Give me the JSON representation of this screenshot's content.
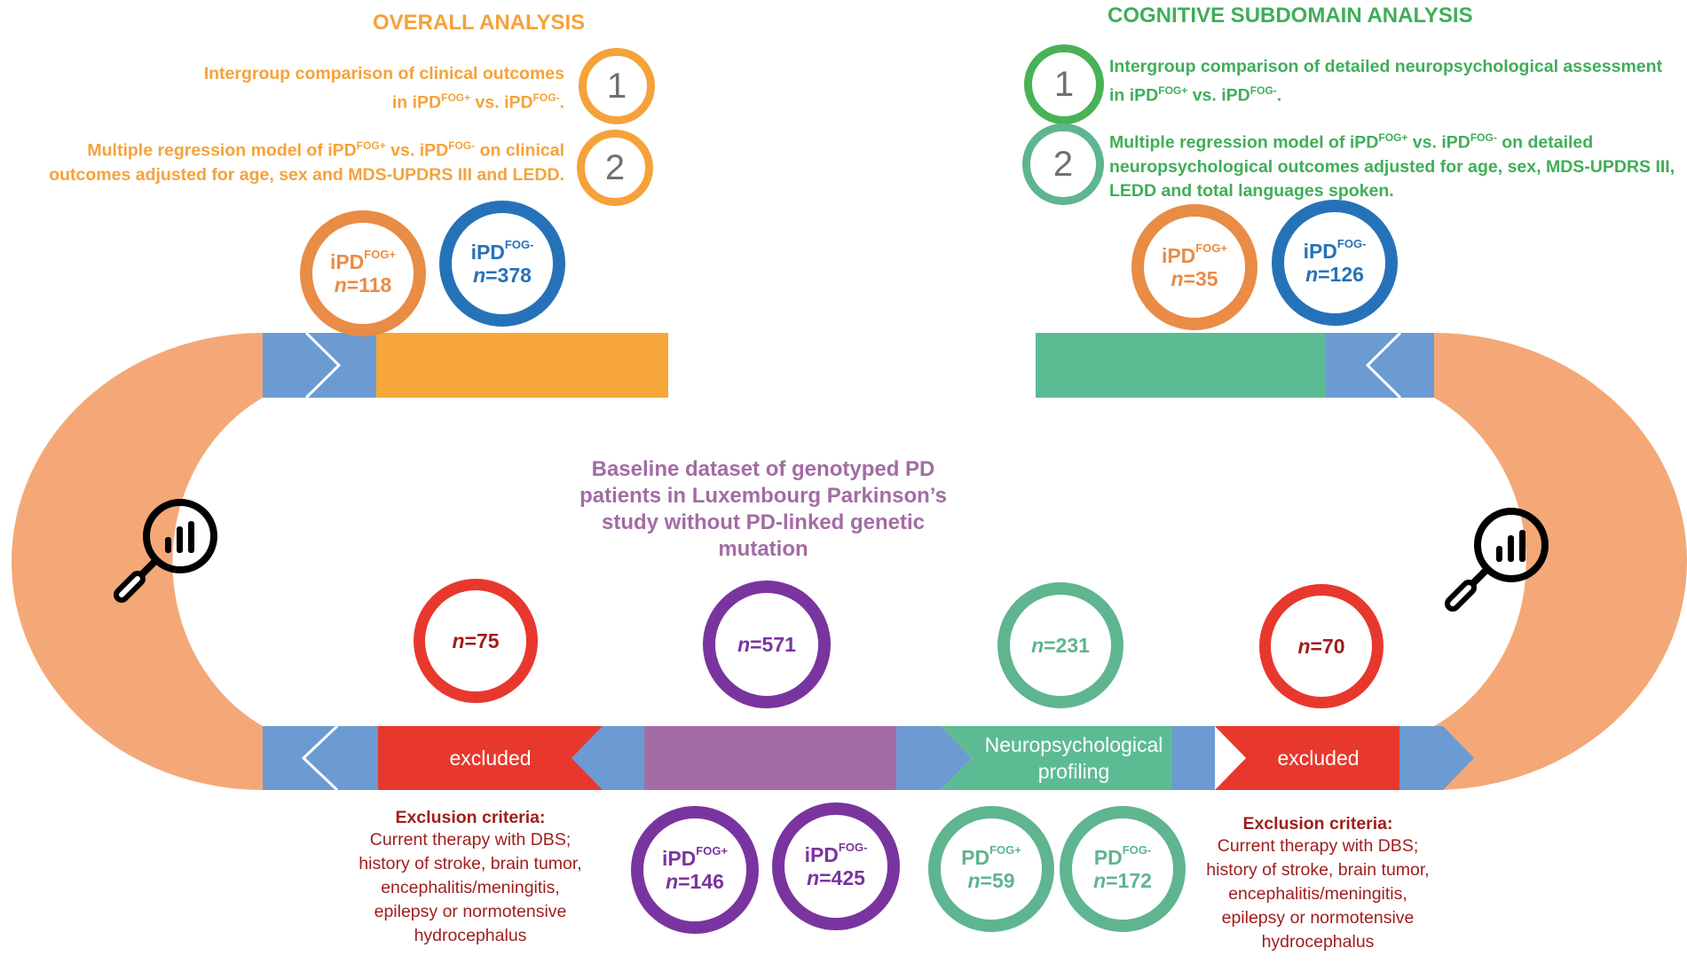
{
  "colors": {
    "orange_text": "#f5a23a",
    "orange_ring": "#e98c45",
    "green_text": "#3fae58",
    "green_ring": "#5fb58f",
    "dark_green_ring": "#49b257",
    "blue": "#2672b8",
    "light_blue": "#6b9bd2",
    "orange_bar": "#f7a73a",
    "peach_arc": "#f4a877",
    "teal_bar": "#5dbb94",
    "red": "#e8382e",
    "purple": "#7a34a0",
    "mauve_bar": "#a36ca4",
    "dark_red_text": "#a01e1e",
    "gray_number": "#707070"
  },
  "overall": {
    "title": "OVERALL ANALYSIS",
    "step1": {
      "number": "1",
      "text_line1": "Intergroup comparison of clinical outcomes",
      "text_line2_prefix": "in iPD",
      "sup1": "FOG+",
      "mid": " vs. iPD",
      "sup2": "FOG-",
      "suffix": "."
    },
    "step2": {
      "number": "2",
      "line1_prefix": "Multiple regression model of iPD",
      "sup1": "FOG+",
      "line1_mid": " vs. iPD",
      "sup2": "FOG-",
      "line1_suffix": " on clinical",
      "line2": "outcomes adjusted for age, sex and MDS-UPDRS III and LEDD."
    },
    "fog_pos": {
      "group": "iPD",
      "sup": "FOG+",
      "n_label": "n",
      "n_value": "=118"
    },
    "fog_neg": {
      "group": "iPD",
      "sup": "FOG-",
      "n_label": "n",
      "n_value": "=378"
    }
  },
  "cognitive": {
    "title": "COGNITIVE SUBDOMAIN ANALYSIS",
    "step1": {
      "number": "1",
      "line1": "Intergroup comparison of detailed neuropsychological assessment",
      "line2_prefix": "in iPD",
      "sup1": "FOG+",
      "mid": " vs. iPD",
      "sup2": "FOG-",
      "suffix": "."
    },
    "step2": {
      "number": "2",
      "line1_prefix": "Multiple regression model of iPD",
      "sup1": "FOG+",
      "line1_mid": " vs. iPD",
      "sup2": "FOG-",
      "line1_suffix": " on detailed",
      "line2": "neuropsychological outcomes adjusted for age, sex, MDS-UPDRS III,",
      "line3": "LEDD and total languages spoken."
    },
    "fog_pos": {
      "group": "iPD",
      "sup": "FOG+",
      "n_label": "n",
      "n_value": "=35"
    },
    "fog_neg": {
      "group": "iPD",
      "sup": "FOG-",
      "n_label": "n",
      "n_value": "=126"
    }
  },
  "center": {
    "title_lines": [
      "Baseline dataset of genotyped PD",
      "patients in Luxembourg Parkinson’s",
      "study without PD-linked genetic",
      "mutation"
    ]
  },
  "counts": {
    "excluded_left": {
      "n_label": "n",
      "n_value": "=75"
    },
    "baseline": {
      "n_label": "n",
      "n_value": "=571"
    },
    "neuro": {
      "n_label": "n",
      "n_value": "=231"
    },
    "excluded_right": {
      "n_label": "n",
      "n_value": "=70"
    }
  },
  "bottom_groups": {
    "ipd_fog_pos": {
      "group": "iPD",
      "sup": "FOG+",
      "n_label": "n",
      "n_value": "=146"
    },
    "ipd_fog_neg": {
      "group": "iPD",
      "sup": "FOG-",
      "n_label": "n",
      "n_value": "=425"
    },
    "pd_fog_pos": {
      "group": "PD",
      "sup": "FOG+",
      "n_label": "n",
      "n_value": "=59"
    },
    "pd_fog_neg": {
      "group": "PD",
      "sup": "FOG-",
      "n_label": "n",
      "n_value": "=172"
    }
  },
  "bar_labels": {
    "excluded_left": "excluded",
    "neuro_line1": "Neuropsychological",
    "neuro_line2": "profiling",
    "excluded_right": "excluded"
  },
  "exclusion_left": {
    "heading": "Exclusion criteria:",
    "lines": [
      "Current therapy with DBS;",
      "history of stroke, brain tumor,",
      "encephalitis/meningitis,",
      "epilepsy or normotensive",
      "hydrocephalus"
    ]
  },
  "exclusion_right": {
    "heading": "Exclusion criteria:",
    "lines": [
      "Current therapy with DBS;",
      "history of stroke, brain tumor,",
      "encephalitis/meningitis,",
      "epilepsy or normotensive",
      "hydrocephalus"
    ]
  },
  "icons": {
    "left_magnifier": "magnifier-bar-chart-icon",
    "right_magnifier": "magnifier-bar-chart-icon"
  }
}
